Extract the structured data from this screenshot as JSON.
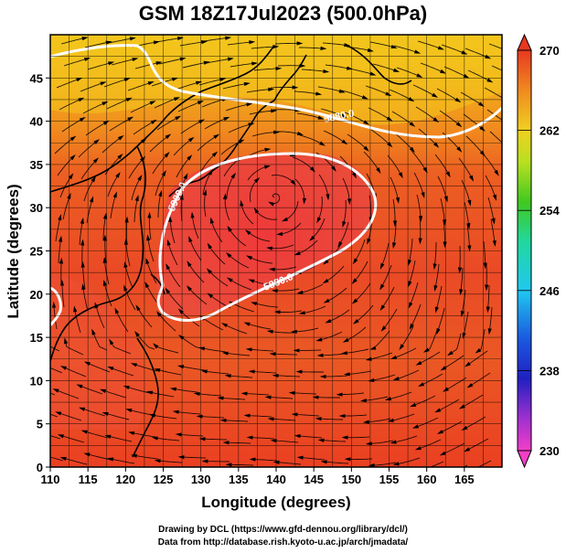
{
  "title": "GSM 18Z17Jul2023 (500.0hPa)",
  "x_axis": {
    "label": "Longitude (degrees)",
    "range": [
      110,
      170
    ],
    "ticks": [
      "110",
      "115",
      "120",
      "125",
      "130",
      "135",
      "140",
      "145",
      "150",
      "155",
      "160",
      "165"
    ]
  },
  "y_axis": {
    "label": "Latitude  (degrees)",
    "range": [
      0,
      50
    ],
    "ticks": [
      "0",
      "5",
      "10",
      "15",
      "20",
      "25",
      "30",
      "35",
      "40",
      "45"
    ]
  },
  "colorbar": {
    "min": 230,
    "max": 270,
    "ticks": [
      "230",
      "238",
      "246",
      "254",
      "262",
      "270"
    ]
  },
  "contours": [
    {
      "label": "5880.0"
    },
    {
      "label": "5900.0"
    },
    {
      "label": "5880.0"
    }
  ],
  "credits": {
    "line1": "Drawing by DCL (https://www.gfd-dennou.org/library/dcl/)",
    "line2": "Data from http://database.rish.kyoto-u.ac.jp/arch/jmadata/"
  }
}
